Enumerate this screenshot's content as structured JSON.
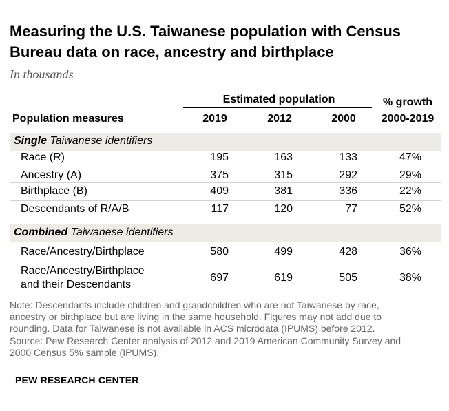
{
  "title_lines": [
    "Measuring the U.S. Taiwanese population with Census",
    "Bureau data on race, ancestry and birthplace"
  ],
  "subtitle": "In thousands",
  "header": {
    "group_label": "Estimated population",
    "growth_label": "% growth",
    "row_label": "Population measures",
    "years": [
      "2019",
      "2012",
      "2000"
    ],
    "growth_range": "2000-2019"
  },
  "sections": [
    {
      "label_bold": "Single",
      "label_rest": " Taiwanese identifiers"
    },
    {
      "label_bold": "Combined",
      "label_rest": " Taiwanese identifiers"
    }
  ],
  "note_lines": [
    "Note: Descendants include children and grandchildren who are not Taiwanese by race,",
    "ancestry or birthplace but are living in the same household. Figures may not add due to",
    "rounding. Data for Taiwanese is not available in ACS microdata (IPUMS) before 2012.",
    "Source: Pew Research Center analysis of 2012 and 2019 American Community Survey and",
    "2000 Census 5% sample (IPUMS)."
  ],
  "brand": "PEW RESEARCH CENTER",
  "chart_data": {
    "type": "table",
    "columns": [
      "Population measures",
      "2019",
      "2012",
      "2000",
      "% growth 2000-2019"
    ],
    "rows": [
      {
        "section": "Single Taiwanese identifiers",
        "label": "Race (R)",
        "v2019": "195",
        "v2012": "163",
        "v2000": "133",
        "growth": "47%"
      },
      {
        "section": "Single Taiwanese identifiers",
        "label": "Ancestry (A)",
        "v2019": "375",
        "v2012": "315",
        "v2000": "292",
        "growth": "29%"
      },
      {
        "section": "Single Taiwanese identifiers",
        "label": "Birthplace (B)",
        "v2019": "409",
        "v2012": "381",
        "v2000": "336",
        "growth": "22%"
      },
      {
        "section": "Single Taiwanese identifiers",
        "label": "Descendants of R/A/B",
        "v2019": "117",
        "v2012": "120",
        "v2000": "77",
        "growth": "52%"
      },
      {
        "section": "Combined Taiwanese identifiers",
        "label": "Race/Ancestry/Birthplace",
        "v2019": "580",
        "v2012": "499",
        "v2000": "428",
        "growth": "36%"
      },
      {
        "section": "Combined Taiwanese identifiers",
        "label": "Race/Ancestry/Birthplace and their Descendants",
        "label_lines": [
          "Race/Ancestry/Birthplace",
          "and their Descendants"
        ],
        "v2019": "697",
        "v2012": "619",
        "v2000": "505",
        "growth": "38%"
      }
    ]
  }
}
